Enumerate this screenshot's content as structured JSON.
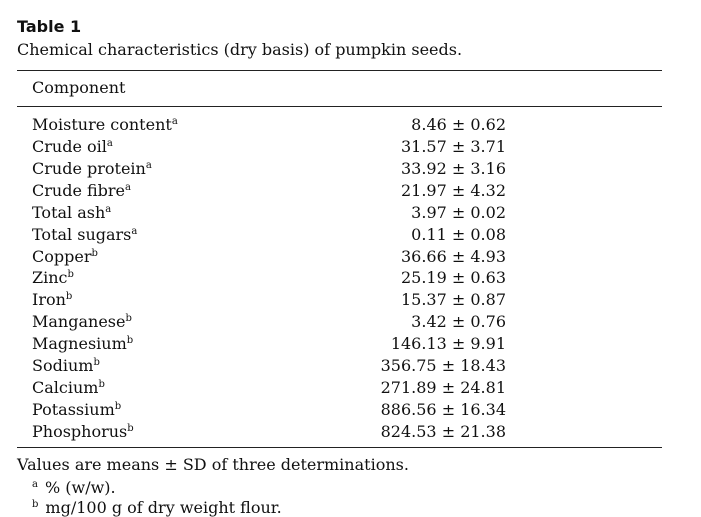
{
  "table": {
    "label": "Table 1",
    "caption": "Chemical characteristics (dry basis) of pumpkin seeds.",
    "column_header": "Component",
    "rows": [
      {
        "component": "Moisture content",
        "mark": "a",
        "value": "8.46 ± 0.62"
      },
      {
        "component": "Crude oil",
        "mark": "a",
        "value": "31.57 ± 3.71"
      },
      {
        "component": "Crude protein",
        "mark": "a",
        "value": "33.92 ± 3.16"
      },
      {
        "component": "Crude fibre",
        "mark": "a",
        "value": "21.97 ± 4.32"
      },
      {
        "component": "Total ash",
        "mark": "a",
        "value": "3.97 ± 0.02"
      },
      {
        "component": "Total sugars",
        "mark": "a",
        "value": "0.11 ± 0.08"
      },
      {
        "component": "Copper",
        "mark": "b",
        "value": "36.66 ± 4.93"
      },
      {
        "component": "Zinc",
        "mark": "b",
        "value": "25.19 ± 0.63"
      },
      {
        "component": "Iron",
        "mark": "b",
        "value": "15.37 ± 0.87"
      },
      {
        "component": "Manganese",
        "mark": "b",
        "value": "3.42 ± 0.76"
      },
      {
        "component": "Magnesium",
        "mark": "b",
        "value": "146.13 ± 9.91"
      },
      {
        "component": "Sodium",
        "mark": "b",
        "value": "356.75 ± 18.43"
      },
      {
        "component": "Calcium",
        "mark": "b",
        "value": "271.89 ± 24.81"
      },
      {
        "component": "Potassium",
        "mark": "b",
        "value": "886.56 ± 16.34"
      },
      {
        "component": "Phosphorus",
        "mark": "b",
        "value": "824.53 ± 21.38"
      }
    ],
    "note": "Values are means ± SD of three determinations.",
    "footnotes": [
      {
        "mark": "a",
        "text": "% (w/w)."
      },
      {
        "mark": "b",
        "text": "mg/100 g of dry weight flour."
      }
    ]
  }
}
